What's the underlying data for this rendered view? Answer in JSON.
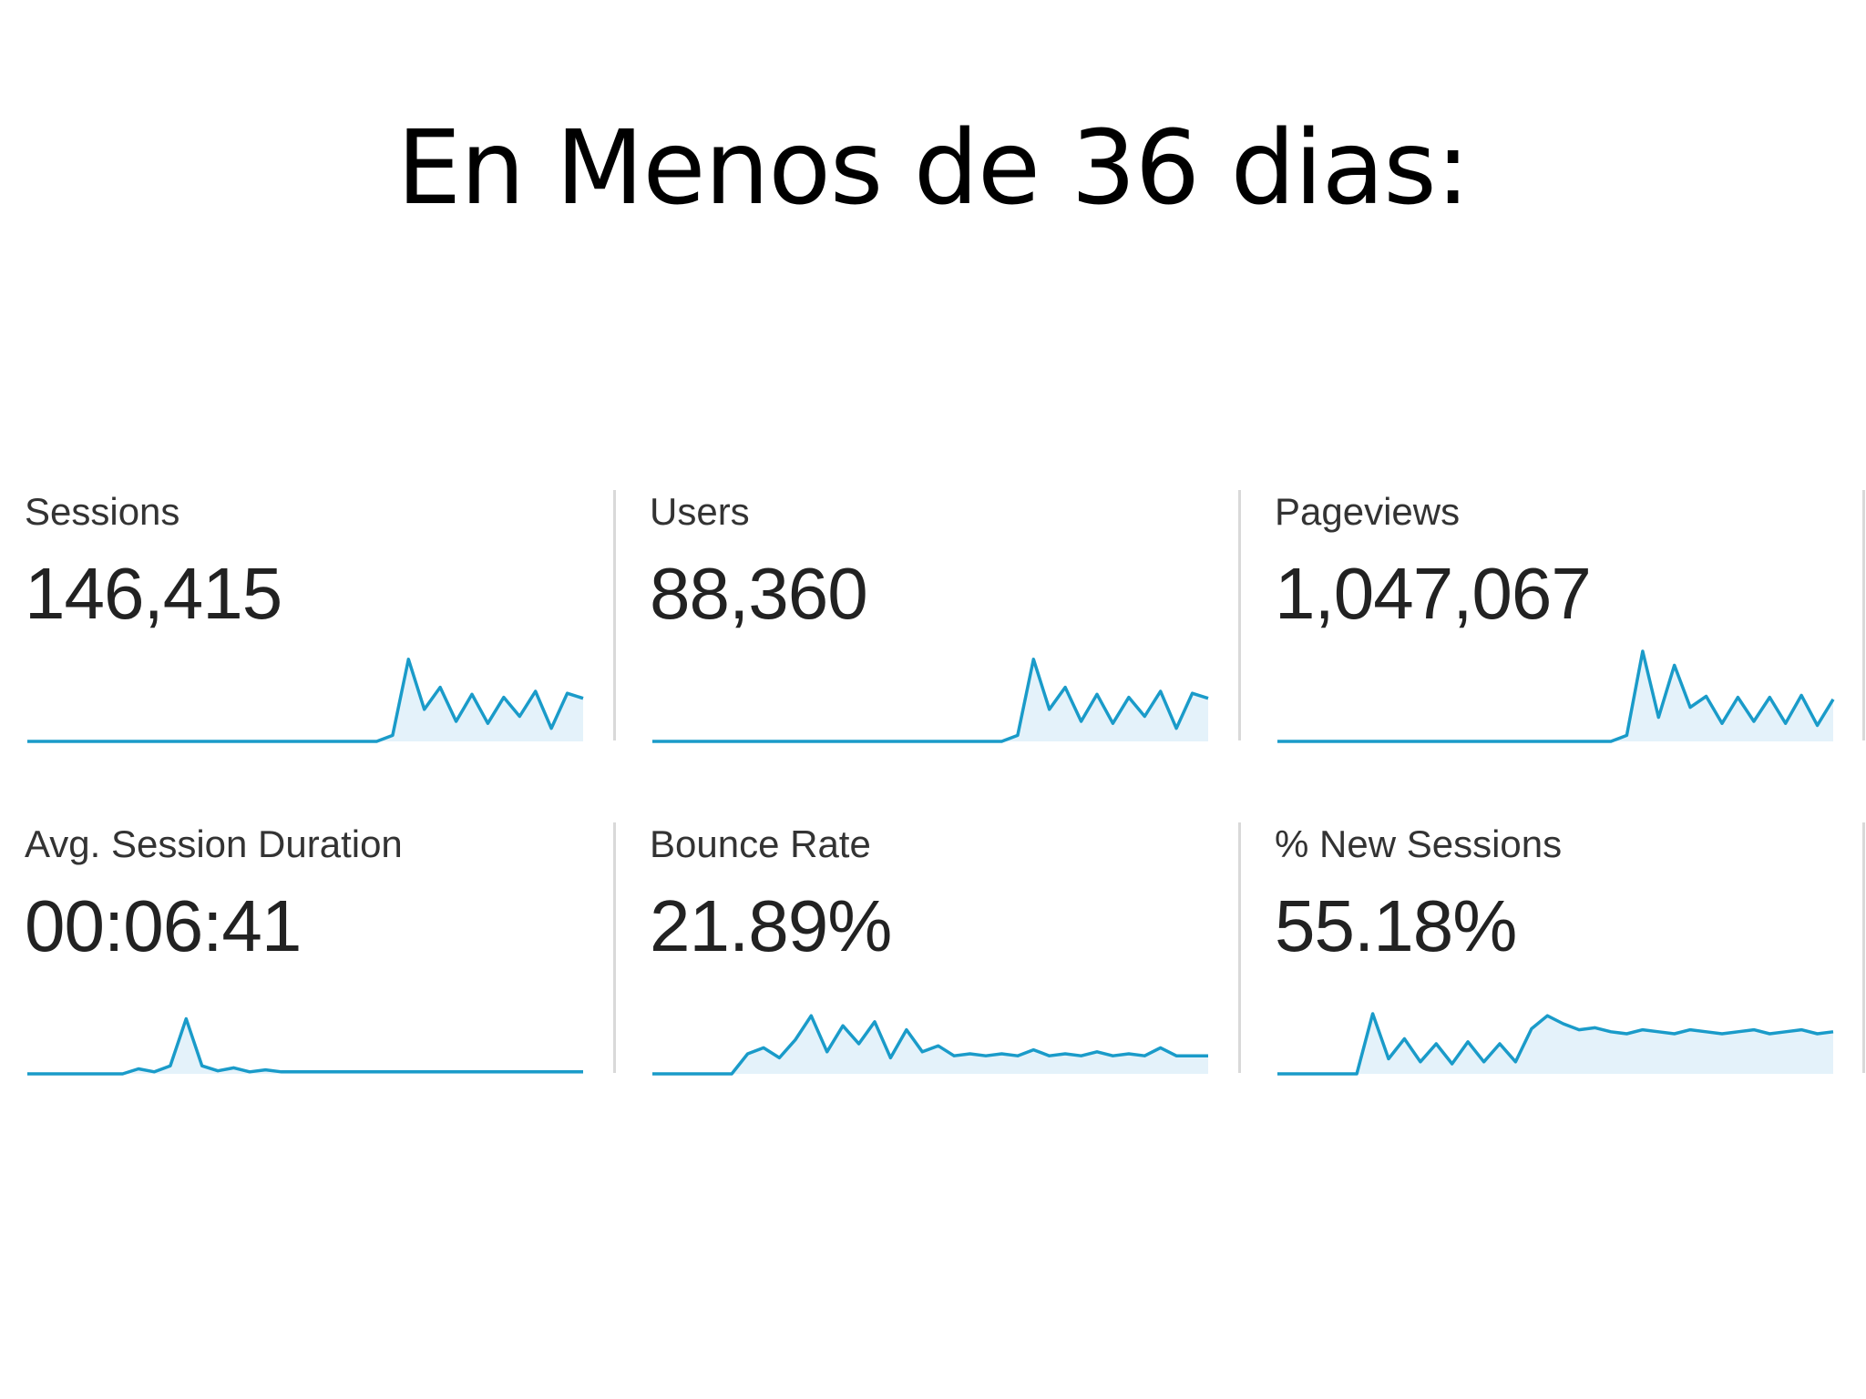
{
  "title": "En Menos de 36 dias:",
  "colors": {
    "line": "#1a9bc9",
    "fill": "#e4f2fa",
    "divider": "#d9d9d9"
  },
  "metrics": [
    {
      "label": "Sessions",
      "value": "146,415",
      "spark": [
        0,
        0,
        0,
        0,
        0,
        0,
        0,
        0,
        0,
        0,
        0,
        0,
        0,
        0,
        0,
        0,
        0,
        0,
        0,
        0,
        0,
        0,
        0,
        0.06,
        0.82,
        0.32,
        0.54,
        0.2,
        0.47,
        0.18,
        0.44,
        0.25,
        0.5,
        0.13,
        0.48,
        0.43
      ]
    },
    {
      "label": "Users",
      "value": "88,360",
      "spark": [
        0,
        0,
        0,
        0,
        0,
        0,
        0,
        0,
        0,
        0,
        0,
        0,
        0,
        0,
        0,
        0,
        0,
        0,
        0,
        0,
        0,
        0,
        0,
        0.06,
        0.82,
        0.32,
        0.54,
        0.2,
        0.47,
        0.18,
        0.44,
        0.25,
        0.5,
        0.13,
        0.48,
        0.43
      ]
    },
    {
      "label": "Pageviews",
      "value": "1,047,067",
      "spark": [
        0,
        0,
        0,
        0,
        0,
        0,
        0,
        0,
        0,
        0,
        0,
        0,
        0,
        0,
        0,
        0,
        0,
        0,
        0,
        0,
        0,
        0,
        0.06,
        0.9,
        0.24,
        0.76,
        0.34,
        0.45,
        0.18,
        0.44,
        0.2,
        0.44,
        0.18,
        0.46,
        0.16,
        0.42
      ]
    },
    {
      "label": "Avg. Session Duration",
      "value": "00:06:41",
      "spark": [
        0,
        0,
        0,
        0,
        0,
        0,
        0,
        0.05,
        0.02,
        0.08,
        0.55,
        0.08,
        0.03,
        0.06,
        0.02,
        0.04,
        0.02,
        0.02,
        0.02,
        0.02,
        0.02,
        0.02,
        0.02,
        0.02,
        0.02,
        0.02,
        0.02,
        0.02,
        0.02,
        0.02,
        0.02,
        0.02,
        0.02,
        0.02,
        0.02,
        0.02
      ]
    },
    {
      "label": "Bounce Rate",
      "value": "21.89%",
      "spark": [
        0,
        0,
        0,
        0,
        0,
        0,
        0.2,
        0.26,
        0.16,
        0.34,
        0.58,
        0.22,
        0.48,
        0.3,
        0.52,
        0.16,
        0.44,
        0.22,
        0.28,
        0.18,
        0.2,
        0.18,
        0.2,
        0.18,
        0.24,
        0.18,
        0.2,
        0.18,
        0.22,
        0.18,
        0.2,
        0.18,
        0.26,
        0.18,
        0.18,
        0.18
      ]
    },
    {
      "label": "% New Sessions",
      "value": "55.18%",
      "spark": [
        0,
        0,
        0,
        0,
        0,
        0,
        0.6,
        0.15,
        0.35,
        0.12,
        0.3,
        0.1,
        0.32,
        0.12,
        0.3,
        0.12,
        0.45,
        0.58,
        0.5,
        0.44,
        0.46,
        0.42,
        0.4,
        0.44,
        0.42,
        0.4,
        0.44,
        0.42,
        0.4,
        0.42,
        0.44,
        0.4,
        0.42,
        0.44,
        0.4,
        0.42
      ]
    }
  ]
}
